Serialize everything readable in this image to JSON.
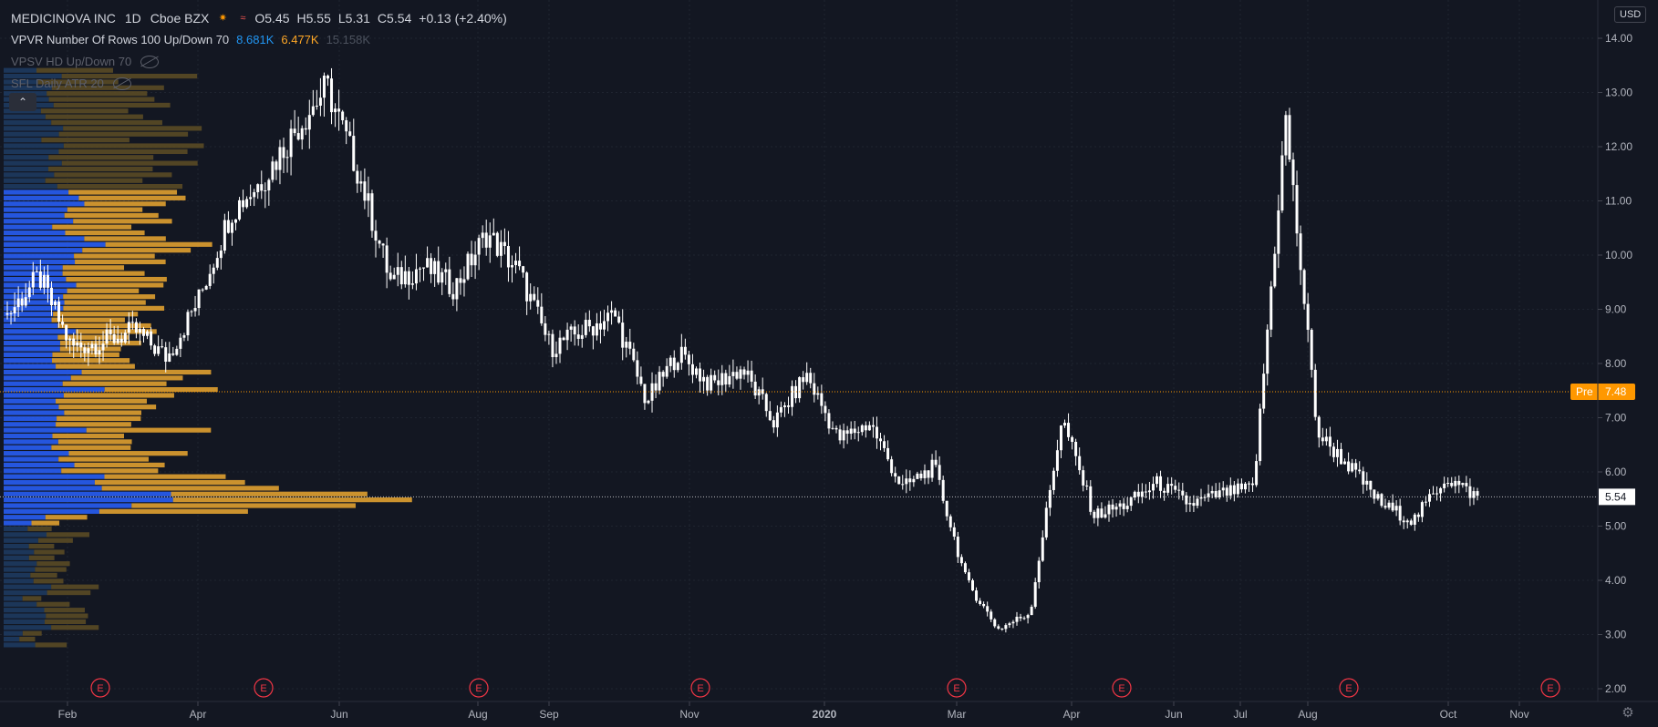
{
  "header": {
    "symbol": "MEDICINOVA INC",
    "interval": "1D",
    "exchange": "Cboe BZX",
    "open": "O5.45",
    "high": "H5.55",
    "low": "L5.31",
    "close": "C5.54",
    "change": "+0.13 (+2.40%)"
  },
  "indicators": {
    "vpvr_label": "VPVR Number Of Rows 100 Up/Down 70",
    "vpvr_up": "8.681K",
    "vpvr_down": "6.477K",
    "vpvr_total": "15.158K",
    "vpsv_label": "VPSV HD Up/Down 70",
    "atr_label": "SFL Daily ATR 20"
  },
  "currency": "USD",
  "collapse_glyph": "⌃",
  "gear_glyph": "⚙",
  "colors": {
    "background": "#131722",
    "candle_up": "#ffffff",
    "up_volume": "#2962ff",
    "down_volume": "#ffa726",
    "pre_market": "#ff9800",
    "earnings": "#f23645"
  },
  "chart_data": {
    "type": "candlestick",
    "ylim": [
      1.9,
      14.5
    ],
    "y_ticks": [
      "14.00",
      "13.00",
      "12.00",
      "11.00",
      "10.00",
      "9.00",
      "8.00",
      "7.00",
      "6.00",
      "5.00",
      "4.00",
      "3.00",
      "2.00"
    ],
    "x_ticks": [
      "Feb",
      "Apr",
      "Jun",
      "Aug",
      "Sep",
      "Nov",
      "2020",
      "Mar",
      "Apr",
      "Jun",
      "Jul",
      "Aug",
      "Oct",
      "Nov"
    ],
    "last_price": "5.54",
    "pre_market_label": "Pre",
    "pre_market_price": "7.48",
    "earnings_marker": "E",
    "earnings_dates": [
      "Feb",
      "Apr",
      "Aug",
      "Oct",
      "Feb",
      "Apr",
      "Jul",
      "Oct"
    ],
    "price_path": [
      [
        "Jan",
        8.9
      ],
      [
        "Feb",
        9.6
      ],
      [
        "Feb",
        8.3
      ],
      [
        "Mar",
        8.4
      ],
      [
        "Mar",
        8.6
      ],
      [
        "Apr",
        8.1
      ],
      [
        "Apr",
        9.2
      ],
      [
        "Apr",
        10.8
      ],
      [
        "May",
        11.4
      ],
      [
        "May",
        12.3
      ],
      [
        "May",
        13.1
      ],
      [
        "Jun",
        11.5
      ],
      [
        "Jun",
        9.5
      ],
      [
        "Jul",
        9.8
      ],
      [
        "Jul",
        9.4
      ],
      [
        "Jul",
        10.4
      ],
      [
        "Aug",
        9.7
      ],
      [
        "Aug",
        8.3
      ],
      [
        "Sep",
        8.6
      ],
      [
        "Sep",
        8.9
      ],
      [
        "Oct",
        7.3
      ],
      [
        "Oct",
        8.2
      ],
      [
        "Nov",
        7.6
      ],
      [
        "Nov",
        7.9
      ],
      [
        "Dec",
        6.9
      ],
      [
        "Dec",
        7.8
      ],
      [
        "Jan",
        6.6
      ],
      [
        "Jan",
        6.9
      ],
      [
        "Feb",
        5.7
      ],
      [
        "Feb",
        6.1
      ],
      [
        "Mar",
        4.0
      ],
      [
        "Mar",
        3.1
      ],
      [
        "Apr",
        3.4
      ],
      [
        "Apr",
        7.0
      ],
      [
        "Apr",
        5.2
      ],
      [
        "May",
        5.4
      ],
      [
        "Jun",
        5.8
      ],
      [
        "Jun",
        5.4
      ],
      [
        "Jul",
        5.6
      ],
      [
        "Jul",
        5.7
      ],
      [
        "Jul",
        12.5
      ],
      [
        "Jul",
        6.7
      ],
      [
        "Aug",
        6.1
      ],
      [
        "Aug",
        5.4
      ],
      [
        "Sep",
        5.1
      ],
      [
        "Sep",
        5.9
      ],
      [
        "Sep",
        5.54
      ]
    ],
    "volume_profile_note": "horizontal histogram on left; blue = up volume, orange = down volume; peak near 5.5"
  }
}
